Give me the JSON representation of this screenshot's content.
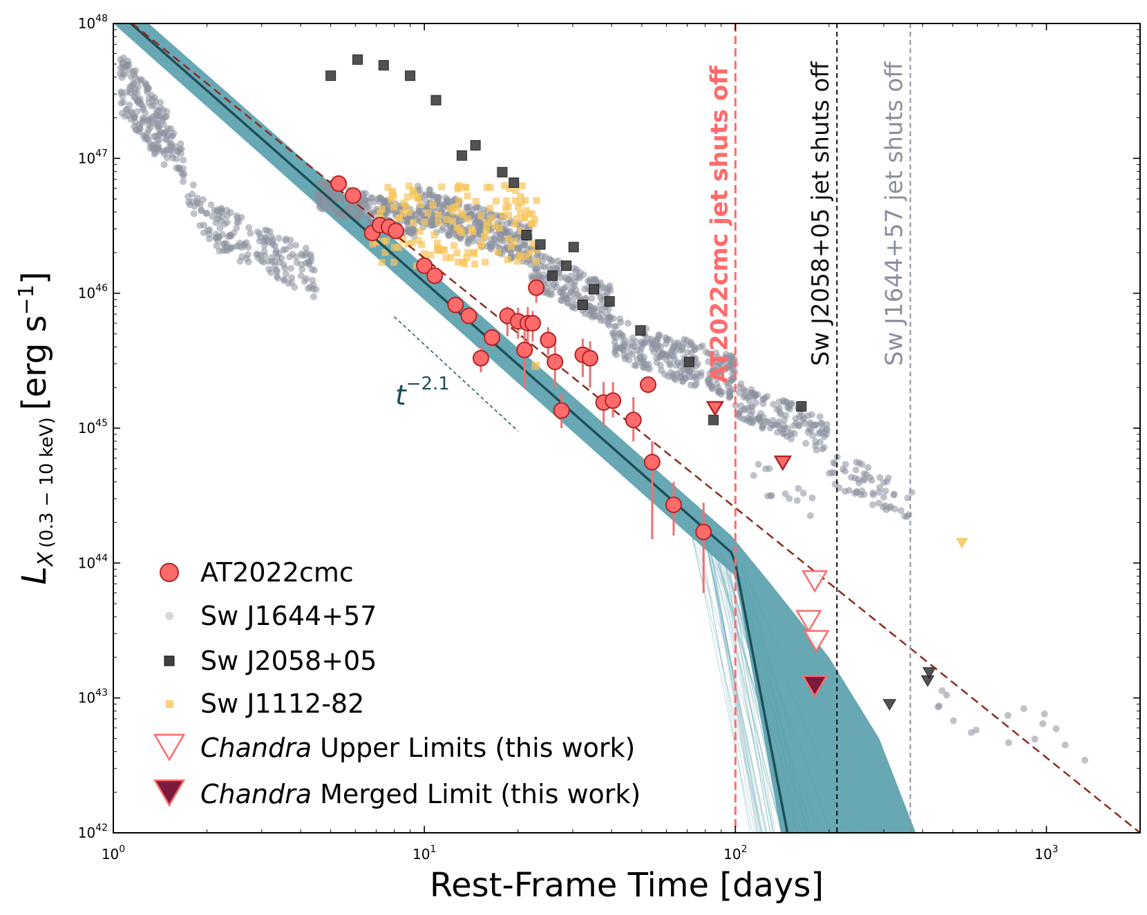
{
  "chart_data": {
    "type": "scatter",
    "xscale": "log",
    "yscale": "log",
    "xlim": [
      1,
      2000
    ],
    "ylim": [
      1e+42,
      1e+48
    ],
    "xlabel": "Rest-Frame Time [days]",
    "ylabel_main": "L",
    "ylabel_sub": "X",
    "ylabel_band": "(0.3 − 10 keV)",
    "ylabel_unit_pre": "[erg s",
    "ylabel_unit_exp": "−1",
    "ylabel_unit_post": "]",
    "xticks": [
      {
        "value": 1,
        "base": "10",
        "exp": "0"
      },
      {
        "value": 10,
        "base": "10",
        "exp": "1"
      },
      {
        "value": 100,
        "base": "10",
        "exp": "2"
      },
      {
        "value": 1000,
        "base": "10",
        "exp": "3"
      }
    ],
    "yticks": [
      {
        "value": 1e+42,
        "base": "10",
        "exp": "42"
      },
      {
        "value": 1e+43,
        "base": "10",
        "exp": "43"
      },
      {
        "value": 1e+44,
        "base": "10",
        "exp": "44"
      },
      {
        "value": 1e+45,
        "base": "10",
        "exp": "45"
      },
      {
        "value": 1e+46,
        "base": "10",
        "exp": "46"
      },
      {
        "value": 1e+47,
        "base": "10",
        "exp": "47"
      },
      {
        "value": 1e+48,
        "base": "10",
        "exp": "48"
      }
    ],
    "colors": {
      "at2022cmc": "#ff6b6b",
      "at2022cmc_edge": "#b22222",
      "errorbar": "#f07070",
      "swj1644": "#8a8f9c",
      "swj2058": "#404040",
      "swj1112": "#f7c45a",
      "model_band": "#5fa3b0",
      "model_line": "#1d4f58",
      "dashed_fit": "#8b2a1f",
      "merged_limit": "#7a1a3c",
      "vline_at2022cmc": "#ff6b6b",
      "vline_swj2058": "#111111",
      "vline_swj1644": "#8a8f9c"
    },
    "series": [
      {
        "name": "AT2022cmc",
        "points": [
          {
            "x": 5.3,
            "y": 6.5e+46
          },
          {
            "x": 5.9,
            "y": 5.3e+46
          },
          {
            "x": 6.8,
            "y": 2.8e+46
          },
          {
            "x": 7.2,
            "y": 3.2e+46
          },
          {
            "x": 7.7,
            "y": 3.1e+46
          },
          {
            "x": 8.1,
            "y": 2.9e+46
          },
          {
            "x": 10.0,
            "y": 1.6e+46
          },
          {
            "x": 10.8,
            "y": 1.35e+46
          },
          {
            "x": 12.6,
            "y": 8.2e+45,
            "err": [
              7.4e+45,
              9e+45
            ]
          },
          {
            "x": 13.9,
            "y": 6.8e+45,
            "err": [
              6e+45,
              7.6e+45
            ]
          },
          {
            "x": 15.2,
            "y": 3.3e+45,
            "err": [
              2.6e+45,
              4e+45
            ]
          },
          {
            "x": 16.5,
            "y": 4.7e+45,
            "err": [
              4e+45,
              5.5e+45
            ]
          },
          {
            "x": 18.5,
            "y": 6.8e+45,
            "err": [
              4.8e+45,
              8e+45
            ]
          },
          {
            "x": 20.0,
            "y": 6.2e+45,
            "err": [
              4.6e+45,
              7.8e+45
            ]
          },
          {
            "x": 21.0,
            "y": 3.8e+45,
            "err": [
              2e+45,
              5.2e+45
            ]
          },
          {
            "x": 21.5,
            "y": 6e+45,
            "err": [
              3.8e+45,
              7.9e+45
            ]
          },
          {
            "x": 22.3,
            "y": 6e+45,
            "err": [
              4.4e+45,
              7.4e+45
            ]
          },
          {
            "x": 22.9,
            "y": 1.1e+46,
            "err": [
              8.5e+45,
              1.3e+46
            ]
          },
          {
            "x": 25.0,
            "y": 4.5e+45,
            "err": [
              3.5e+45,
              5.6e+45
            ]
          },
          {
            "x": 26.3,
            "y": 3.1e+45,
            "err": [
              2e+45,
              4.4e+45
            ]
          },
          {
            "x": 27.6,
            "y": 1.35e+45,
            "err": [
              1e+45,
              1.8e+45
            ]
          },
          {
            "x": 32.3,
            "y": 3.5e+45,
            "err": [
              2.4e+45,
              4.6e+45
            ]
          },
          {
            "x": 34.1,
            "y": 3.3e+45,
            "err": [
              2e+45,
              4.4e+45
            ]
          },
          {
            "x": 37.7,
            "y": 1.55e+45,
            "err": [
              1.05e+45,
              2.2e+45
            ]
          },
          {
            "x": 40.4,
            "y": 1.6e+45,
            "err": [
              1.2e+45,
              2.2e+45
            ]
          },
          {
            "x": 47.0,
            "y": 1.15e+45,
            "err": [
              8e+44,
              1.7e+45
            ]
          },
          {
            "x": 52.4,
            "y": 2.1e+45
          },
          {
            "x": 54.0,
            "y": 5.6e+44,
            "err": [
              1.5e+44,
              8e+44
            ]
          },
          {
            "x": 63.3,
            "y": 2.7e+44,
            "err": [
              1.6e+44,
              4e+44
            ]
          },
          {
            "x": 79.0,
            "y": 1.7e+44,
            "err": [
              6e+43,
              2.8e+44
            ]
          }
        ]
      },
      {
        "name": "Sw J1644+57",
        "points_note": "dense cloud of grey points; generated procedurally from ranges"
      },
      {
        "name": "Sw J2058+05",
        "points": [
          {
            "x": 5.0,
            "y": 4.1e+47
          },
          {
            "x": 6.1,
            "y": 5.4e+47
          },
          {
            "x": 7.4,
            "y": 4.9e+47
          },
          {
            "x": 9.0,
            "y": 4.1e+47
          },
          {
            "x": 10.9,
            "y": 2.7e+47
          },
          {
            "x": 13.2,
            "y": 1.05e+47
          },
          {
            "x": 14.6,
            "y": 1.25e+47
          },
          {
            "x": 17.8,
            "y": 7.9e+46
          },
          {
            "x": 19.4,
            "y": 6.6e+46
          },
          {
            "x": 21.3,
            "y": 2.7e+46
          },
          {
            "x": 23.6,
            "y": 2.3e+46
          },
          {
            "x": 25.8,
            "y": 1.35e+46
          },
          {
            "x": 28.6,
            "y": 1.6e+46
          },
          {
            "x": 30.2,
            "y": 2.2e+46
          },
          {
            "x": 32.3,
            "y": 8.2e+45
          },
          {
            "x": 35.1,
            "y": 1.07e+46
          },
          {
            "x": 39.4,
            "y": 8.7e+45
          },
          {
            "x": 49.5,
            "y": 5.3e+45
          },
          {
            "x": 71.0,
            "y": 3.1e+45
          },
          {
            "x": 85.0,
            "y": 1.15e+45
          },
          {
            "x": 163.0,
            "y": 1.45e+45
          }
        ],
        "limits": [
          {
            "x": 313.0,
            "y": 9e+42
          },
          {
            "x": 415.0,
            "y": 1.35e+43
          },
          {
            "x": 420.0,
            "y": 1.55e+43
          }
        ]
      },
      {
        "name": "Sw J1112-82",
        "limits": [
          {
            "x": 535.0,
            "y": 1.42e+44
          }
        ]
      },
      {
        "name": "Chandra Upper Limits (this work)",
        "limits": [
          {
            "x": 86.0,
            "y": 1.42e+45
          },
          {
            "x": 142.0,
            "y": 5.6e+44
          },
          {
            "x": 180.0,
            "y": 7.5e+43
          },
          {
            "x": 172.0,
            "y": 3.8e+43
          },
          {
            "x": 182.0,
            "y": 2.7e+43
          }
        ]
      },
      {
        "name": "Chandra Merged Limit (this work)",
        "limits": [
          {
            "x": 180.0,
            "y": 1.25e+43
          }
        ]
      }
    ],
    "model": {
      "line": [
        {
          "x": 1.0,
          "y": 1.3e+48
        },
        {
          "x": 97.0,
          "y": 1.2e+44
        },
        {
          "x": 100.0,
          "y": 1e+44
        },
        {
          "x": 147.0,
          "y": 1e+42
        }
      ],
      "dashed_fit": [
        {
          "x": 1.15,
          "y": 1e+48
        },
        {
          "x": 2000.0,
          "y": 1e+42
        }
      ],
      "slope_guide": [
        {
          "x": 8.0,
          "y": 6.7e+45
        },
        {
          "x": 20.0,
          "y": 9.5e+44
        }
      ]
    },
    "annotation_base": "t",
    "annotation_exp": "−2.1",
    "vlines": [
      {
        "x": 100,
        "label": "AT2022cmc jet shuts off",
        "color_key": "vline_at2022cmc"
      },
      {
        "x": 212,
        "label": "Sw J2058+05 jet shuts off",
        "color_key": "vline_swj2058"
      },
      {
        "x": 365,
        "label": "Sw J1644+57 jet shuts off",
        "color_key": "vline_swj1644"
      }
    ],
    "legend": [
      {
        "label": "AT2022cmc"
      },
      {
        "label": "Sw J1644+57"
      },
      {
        "label": "Sw J2058+05"
      },
      {
        "label": "Sw J1112-82"
      },
      {
        "label_italic": "Chandra",
        "label": " Upper Limits (this work)"
      },
      {
        "label_italic": "Chandra",
        "label": " Merged Limit (this work)"
      }
    ]
  }
}
